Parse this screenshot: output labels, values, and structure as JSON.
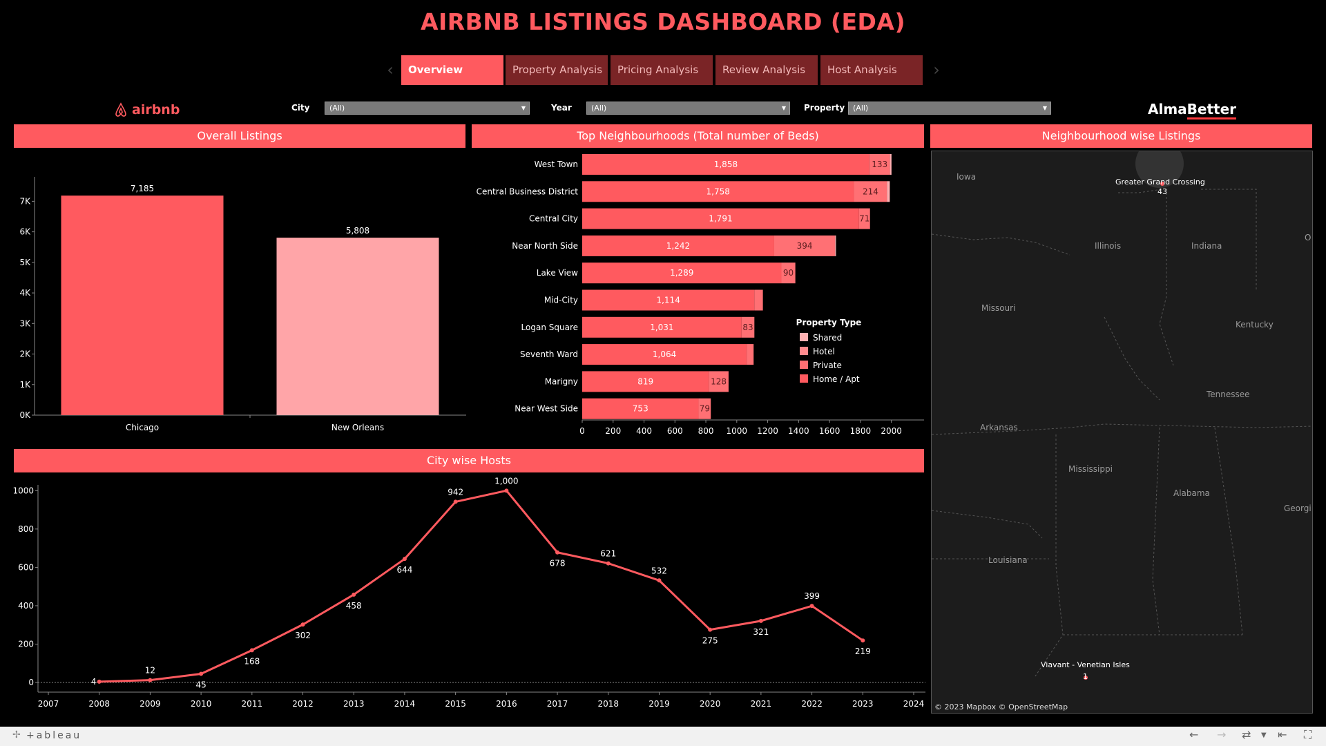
{
  "dashboard_title": "AIRBNB LISTINGS DASHBOARD (EDA)",
  "tabs": [
    {
      "label": "Overview",
      "active": true
    },
    {
      "label": "Property Analysis",
      "active": false
    },
    {
      "label": "Pricing Analysis",
      "active": false
    },
    {
      "label": "Review Analysis",
      "active": false
    },
    {
      "label": "Host Analysis",
      "active": false
    }
  ],
  "brand_left": "airbnb",
  "brand_right_a": "Alma",
  "brand_right_b": "Better",
  "filters": {
    "city_label": "City",
    "city_value": "(All)",
    "year_label": "Year",
    "year_value": "(All)",
    "property_label": "Property",
    "property_value": "(All)"
  },
  "panels": {
    "overall": "Overall Listings",
    "neigh": "Top Neighbourhoods (Total number of Beds)",
    "map": "Neighbourhood wise Listings",
    "hosts": "City wise Hosts"
  },
  "colors": {
    "accent": "#ff5a5f",
    "light_bar": "#ffa5a8",
    "dark_tab": "#7a2426"
  },
  "chart_data": [
    {
      "type": "bar",
      "title": "Overall Listings",
      "categories": [
        "Chicago",
        "New Orleans"
      ],
      "values": [
        7185,
        5808
      ],
      "value_labels": [
        "7,185",
        "5,808"
      ],
      "yticks": [
        "0K",
        "1K",
        "2K",
        "3K",
        "4K",
        "5K",
        "6K",
        "7K"
      ],
      "ylim": [
        0,
        7800
      ]
    },
    {
      "type": "bar",
      "orientation": "horizontal",
      "stacked": true,
      "title": "Top Neighbourhoods (Total number of Beds)",
      "categories": [
        "West Town",
        "Central Business District",
        "Central City",
        "Near North Side",
        "Lake View",
        "Mid-City",
        "Logan Square",
        "Seventh Ward",
        "Marigny",
        "Near West Side"
      ],
      "series": [
        {
          "name": "Home / Apt",
          "values": [
            1858,
            1758,
            1791,
            1242,
            1289,
            1114,
            1031,
            1064,
            819,
            753
          ],
          "labels": [
            "1,858",
            "1,758",
            "1,791",
            "1,242",
            "1,289",
            "1,114",
            "1,031",
            "1,064",
            "819",
            "753"
          ]
        },
        {
          "name": "Private",
          "values": [
            133,
            214,
            71,
            394,
            90,
            55,
            83,
            45,
            128,
            79
          ],
          "labels": [
            "133",
            "214",
            "71",
            "394",
            "90",
            "",
            "83",
            "",
            "128",
            "79"
          ]
        },
        {
          "name": "Hotel",
          "values": [
            0,
            0,
            0,
            0,
            0,
            0,
            0,
            0,
            0,
            0
          ]
        },
        {
          "name": "Shared",
          "values": [
            10,
            18,
            0,
            6,
            0,
            0,
            0,
            0,
            0,
            0
          ]
        }
      ],
      "xticks": [
        "0",
        "200",
        "400",
        "600",
        "800",
        "1000",
        "1200",
        "1400",
        "1600",
        "1800",
        "2000"
      ],
      "xlim": [
        0,
        2100
      ],
      "legend_title": "Property Type",
      "legend": [
        "Shared",
        "Hotel",
        "Private",
        "Home / Apt"
      ],
      "legend_colors": [
        "#ffb0b2",
        "#ff8a8d",
        "#ff7074",
        "#ff5a5f"
      ]
    },
    {
      "type": "line",
      "title": "City wise Hosts",
      "x": [
        2008,
        2009,
        2010,
        2011,
        2012,
        2013,
        2014,
        2015,
        2016,
        2017,
        2018,
        2019,
        2020,
        2021,
        2022,
        2023
      ],
      "y": [
        4,
        12,
        45,
        168,
        302,
        458,
        644,
        942,
        1000,
        678,
        621,
        532,
        275,
        321,
        399,
        219
      ],
      "y_labels": [
        "4",
        "12",
        "45",
        "168",
        "302",
        "458",
        "644",
        "942",
        "1,000",
        "678",
        "621",
        "532",
        "275",
        "321",
        "399",
        "219"
      ],
      "xticks": [
        "2007",
        "2008",
        "2009",
        "2010",
        "2011",
        "2012",
        "2013",
        "2014",
        "2015",
        "2016",
        "2017",
        "2018",
        "2019",
        "2020",
        "2021",
        "2022",
        "2023",
        "2024"
      ],
      "yticks": [
        "0",
        "200",
        "400",
        "600",
        "800",
        "1000"
      ],
      "xlim": [
        2007,
        2024
      ],
      "ylim": [
        0,
        1030
      ]
    }
  ],
  "map": {
    "states": [
      "Iowa",
      "Illinois",
      "Indiana",
      "Missouri",
      "Kentucky",
      "Tennessee",
      "Arkansas",
      "Mississippi",
      "Alabama",
      "Louisiana",
      "Georgi",
      "O"
    ],
    "points": [
      {
        "name": "Greater Grand Crossing",
        "count": "43"
      },
      {
        "name": "Viavant - Venetian Isles",
        "count": "1"
      }
    ],
    "credit": "© 2023 Mapbox  © OpenStreetMap"
  },
  "footer": {
    "tableau": "+ableau"
  }
}
